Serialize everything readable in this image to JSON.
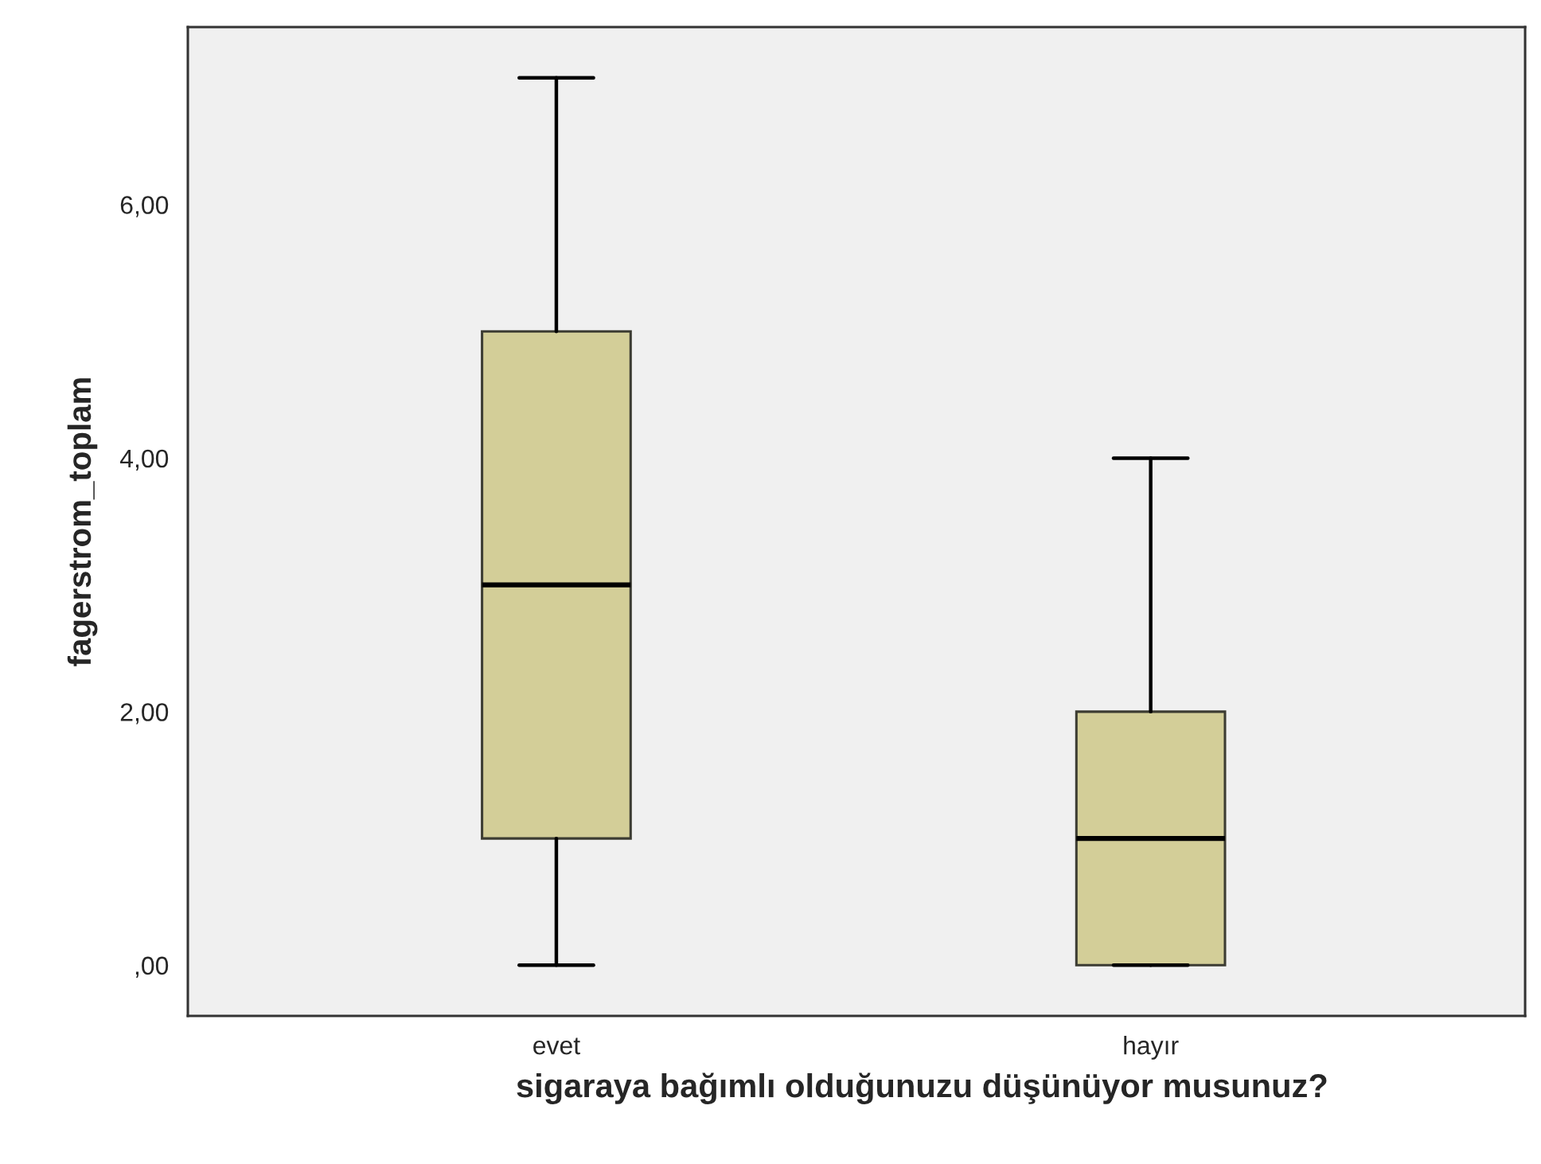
{
  "chart_data": {
    "type": "box",
    "xlabel": "sigaraya bağımlı olduğunuzu düşünüyor musunuz?",
    "ylabel": "fagerstrom_toplam",
    "categories": [
      "evet",
      "hayır"
    ],
    "series": [
      {
        "color": "#d3ce98",
        "boxes": [
          {
            "low": 0,
            "q1": 1,
            "median": 3,
            "q3": 5,
            "high": 7
          },
          {
            "low": 0,
            "q1": 0,
            "median": 1,
            "q3": 2,
            "high": 4
          }
        ]
      }
    ],
    "ylim": [
      -0.4,
      7.4
    ],
    "yticks": [
      {
        "value": 0,
        "label": ",00"
      },
      {
        "value": 2,
        "label": "2,00"
      },
      {
        "value": 4,
        "label": "4,00"
      },
      {
        "value": 6,
        "label": "6,00"
      }
    ]
  }
}
